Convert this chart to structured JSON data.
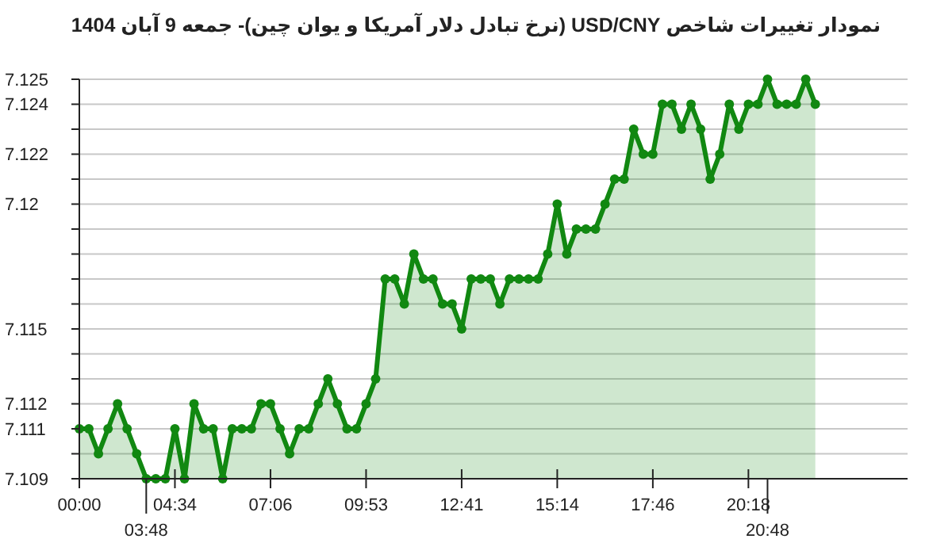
{
  "chart_data": {
    "type": "area",
    "title": "نمودار تغییرات شاخص USD/CNY (نرخ تبادل دلار آمریکا و یوان چین)- جمعه  9 آبان 1404",
    "categories": [
      "00:00",
      null,
      null,
      null,
      null,
      null,
      null,
      "03:48",
      null,
      null,
      "04:34",
      null,
      null,
      null,
      null,
      null,
      null,
      null,
      null,
      null,
      "07:06",
      null,
      null,
      null,
      null,
      null,
      null,
      null,
      null,
      null,
      "09:53",
      null,
      null,
      null,
      null,
      null,
      null,
      null,
      null,
      null,
      "12:41",
      null,
      null,
      null,
      null,
      null,
      null,
      null,
      null,
      null,
      "15:14",
      null,
      null,
      null,
      null,
      null,
      null,
      null,
      null,
      null,
      "17:46",
      null,
      null,
      null,
      null,
      null,
      null,
      null,
      null,
      null,
      "20:18",
      null,
      "20:48",
      null,
      null,
      null,
      null,
      null
    ],
    "series": [
      {
        "color": "#118811",
        "values": [
          7.111,
          7.111,
          7.11,
          7.111,
          7.112,
          7.111,
          7.11,
          7.109,
          7.109,
          7.109,
          7.111,
          7.109,
          7.112,
          7.111,
          7.111,
          7.109,
          7.111,
          7.111,
          7.111,
          7.112,
          7.112,
          7.111,
          7.11,
          7.111,
          7.111,
          7.112,
          7.113,
          7.112,
          7.111,
          7.111,
          7.112,
          7.113,
          7.117,
          7.117,
          7.116,
          7.118,
          7.117,
          7.117,
          7.116,
          7.116,
          7.115,
          7.117,
          7.117,
          7.117,
          7.116,
          7.117,
          7.117,
          7.117,
          7.117,
          7.118,
          7.12,
          7.118,
          7.119,
          7.119,
          7.119,
          7.12,
          7.121,
          7.121,
          7.123,
          7.122,
          7.122,
          7.124,
          7.124,
          7.123,
          7.124,
          7.123,
          7.121,
          7.122,
          7.124,
          7.123,
          7.124,
          7.124,
          7.125,
          7.124,
          7.124,
          7.124,
          7.125,
          7.124
        ]
      }
    ],
    "ylim": [
      7.109,
      7.125
    ],
    "yticks": [
      7.109,
      {
        "value": 7.11,
        "label": null
      },
      7.111,
      7.112,
      {
        "value": 7.113,
        "label": null
      },
      {
        "value": 7.114,
        "label": null
      },
      7.115,
      {
        "value": 7.116,
        "label": null
      },
      {
        "value": 7.117,
        "label": null
      },
      {
        "value": 7.118,
        "label": null
      },
      {
        "value": 7.119,
        "label": null
      },
      7.12,
      {
        "value": 7.121,
        "label": null
      },
      7.122,
      {
        "value": 7.123,
        "label": null
      },
      7.124,
      7.125
    ],
    "grid": "y",
    "marker": "circle",
    "line_style": "solid"
  }
}
